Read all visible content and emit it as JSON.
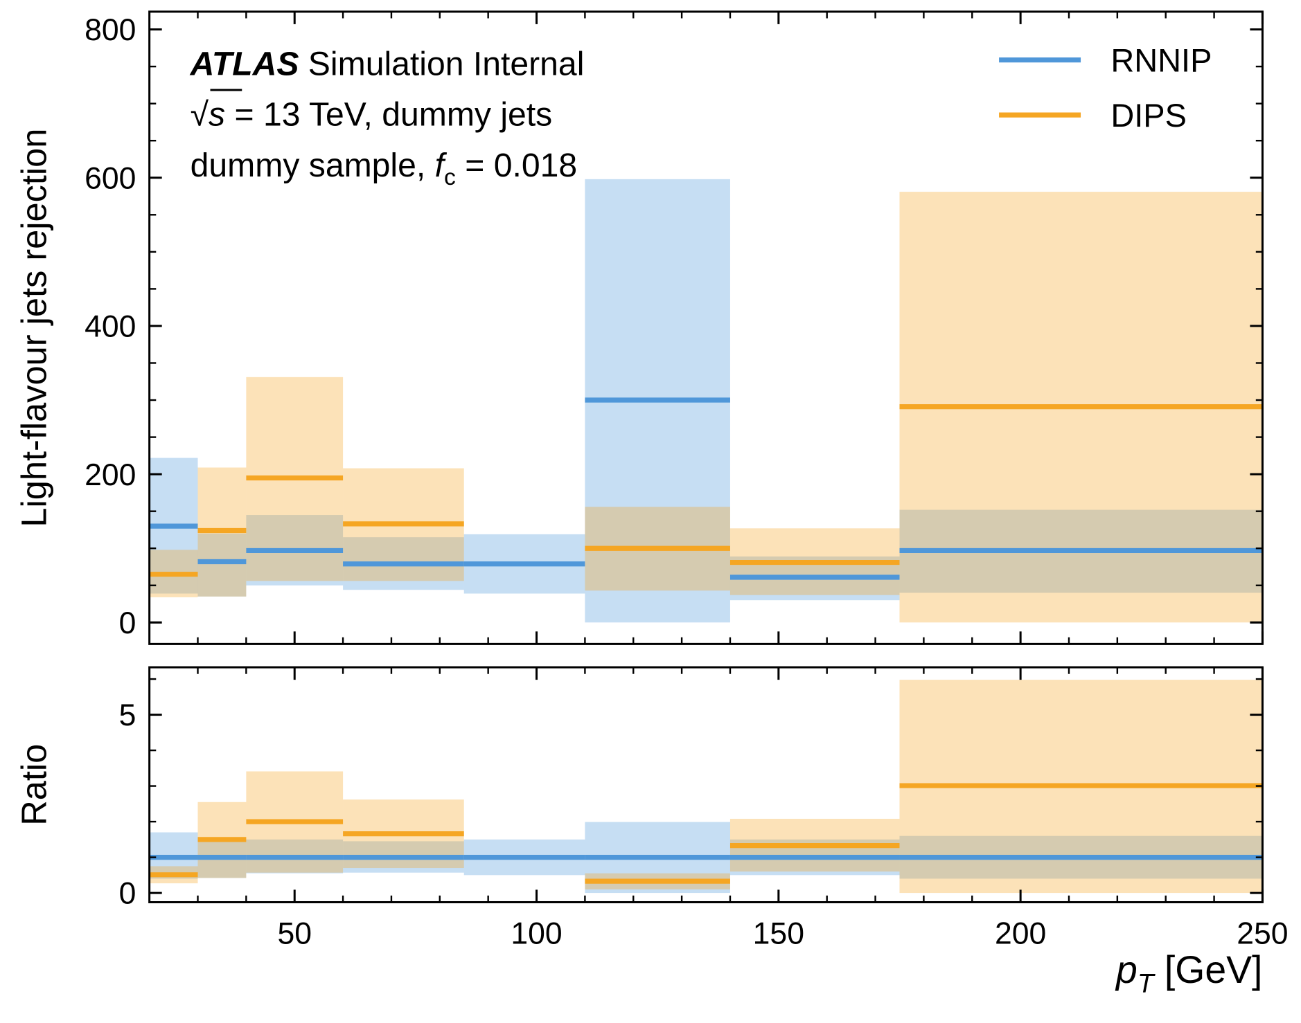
{
  "chart_data": [
    {
      "type": "histogram",
      "ylabel": "Light-flavour jets rejection",
      "bins": [
        20,
        30,
        40,
        60,
        85,
        110,
        140,
        175,
        250
      ],
      "xlim": [
        20,
        250
      ],
      "ylim": [
        -29,
        824
      ],
      "yticks": [
        0,
        200,
        400,
        600,
        800
      ],
      "yticks_minor": [
        50,
        100,
        150,
        250,
        300,
        350,
        450,
        500,
        550,
        650,
        700,
        750
      ],
      "legend": "upper right",
      "annotations": [
        [
          {
            "text": "ATLAS",
            "style": "bold-italic"
          },
          {
            "text": " Simulation Internal",
            "style": "normal"
          }
        ],
        [
          {
            "text": "√",
            "style": "normal"
          },
          {
            "text": "s",
            "style": "italic"
          },
          {
            "text": " = 13 TeV, dummy jets",
            "style": "normal"
          }
        ],
        [
          {
            "text": "dummy sample, ",
            "style": "normal"
          },
          {
            "text": "f",
            "style": "italic"
          },
          {
            "text": "c",
            "style": "sub"
          },
          {
            "text": " = 0.018",
            "style": "normal"
          }
        ]
      ],
      "series": [
        {
          "name": "RNNIP",
          "color": "#4f97d9",
          "values": [
            130,
            82,
            97,
            79,
            79,
            300,
            61,
            97
          ],
          "lower": [
            39,
            35,
            50,
            44,
            39,
            0,
            30,
            40
          ],
          "upper": [
            222,
            120,
            145,
            115,
            119,
            598,
            89,
            152
          ]
        },
        {
          "name": "DIPS",
          "color": "#f5a623",
          "values": [
            65,
            124,
            195,
            133,
            null,
            100,
            81,
            291
          ],
          "lower": [
            34,
            35,
            56,
            56,
            null,
            43,
            37,
            0
          ],
          "upper": [
            98,
            209,
            331,
            208,
            null,
            156,
            127,
            581
          ]
        }
      ]
    },
    {
      "type": "histogram",
      "ylabel": "Ratio",
      "xlabel": [
        {
          "text": "p",
          "style": "italic"
        },
        {
          "text": "T",
          "style": "sub-italic"
        },
        {
          "text": " [GeV]",
          "style": "normal"
        }
      ],
      "bins": [
        20,
        30,
        40,
        60,
        85,
        110,
        140,
        175,
        250
      ],
      "xlim": [
        20,
        250
      ],
      "xticks": [
        50,
        100,
        150,
        200,
        250
      ],
      "xticks_minor": [
        30,
        40,
        60,
        70,
        80,
        90,
        110,
        120,
        130,
        140,
        160,
        170,
        180,
        190,
        210,
        220,
        230,
        240
      ],
      "ylim": [
        -0.26,
        6.33
      ],
      "yticks": [
        0,
        5
      ],
      "yticks_minor": [
        1,
        2,
        3,
        4,
        6
      ],
      "series": [
        {
          "name": "RNNIP",
          "color": "#4f97d9",
          "values": [
            1,
            1,
            1,
            1,
            1,
            1,
            1,
            1
          ],
          "lower": [
            0.4,
            0.42,
            0.55,
            0.57,
            0.5,
            0,
            0.5,
            0.4
          ],
          "upper": [
            1.7,
            1.5,
            1.5,
            1.45,
            1.5,
            1.99,
            1.5,
            1.6
          ]
        },
        {
          "name": "DIPS",
          "color": "#f5a623",
          "values": [
            0.51,
            1.5,
            2.0,
            1.66,
            null,
            0.33,
            1.33,
            3.01
          ],
          "lower": [
            0.27,
            0.42,
            0.57,
            0.7,
            null,
            0.1,
            0.6,
            0
          ],
          "upper": [
            0.75,
            2.55,
            3.41,
            2.62,
            null,
            0.55,
            2.08,
            5.98
          ]
        }
      ]
    }
  ]
}
